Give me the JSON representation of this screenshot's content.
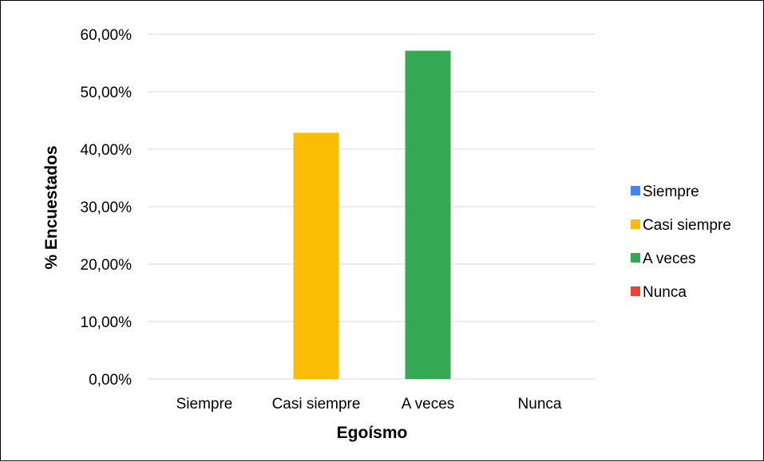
{
  "chart_data": {
    "type": "bar",
    "title": "",
    "xlabel": "Egoísmo",
    "ylabel": "% Encuestados",
    "categories": [
      "Siempre",
      "Casi siempre",
      "A veces",
      "Nunca"
    ],
    "values": [
      0,
      42.86,
      57.14,
      0
    ],
    "colors": [
      "#4285f4",
      "#fbbc04",
      "#34a853",
      "#ea4335"
    ],
    "ylim": [
      0,
      60
    ],
    "yticks": [
      0,
      10,
      20,
      30,
      40,
      50,
      60
    ],
    "ytick_labels": [
      "0,00%",
      "10,00%",
      "20,00%",
      "30,00%",
      "40,00%",
      "50,00%",
      "60,00%"
    ],
    "grid": true,
    "legend": {
      "position": "right",
      "entries": [
        {
          "name": "Siempre",
          "color": "#4285f4"
        },
        {
          "name": "Casi siempre",
          "color": "#fbbc04"
        },
        {
          "name": "A veces",
          "color": "#34a853"
        },
        {
          "name": "Nunca",
          "color": "#ea4335"
        }
      ]
    }
  }
}
